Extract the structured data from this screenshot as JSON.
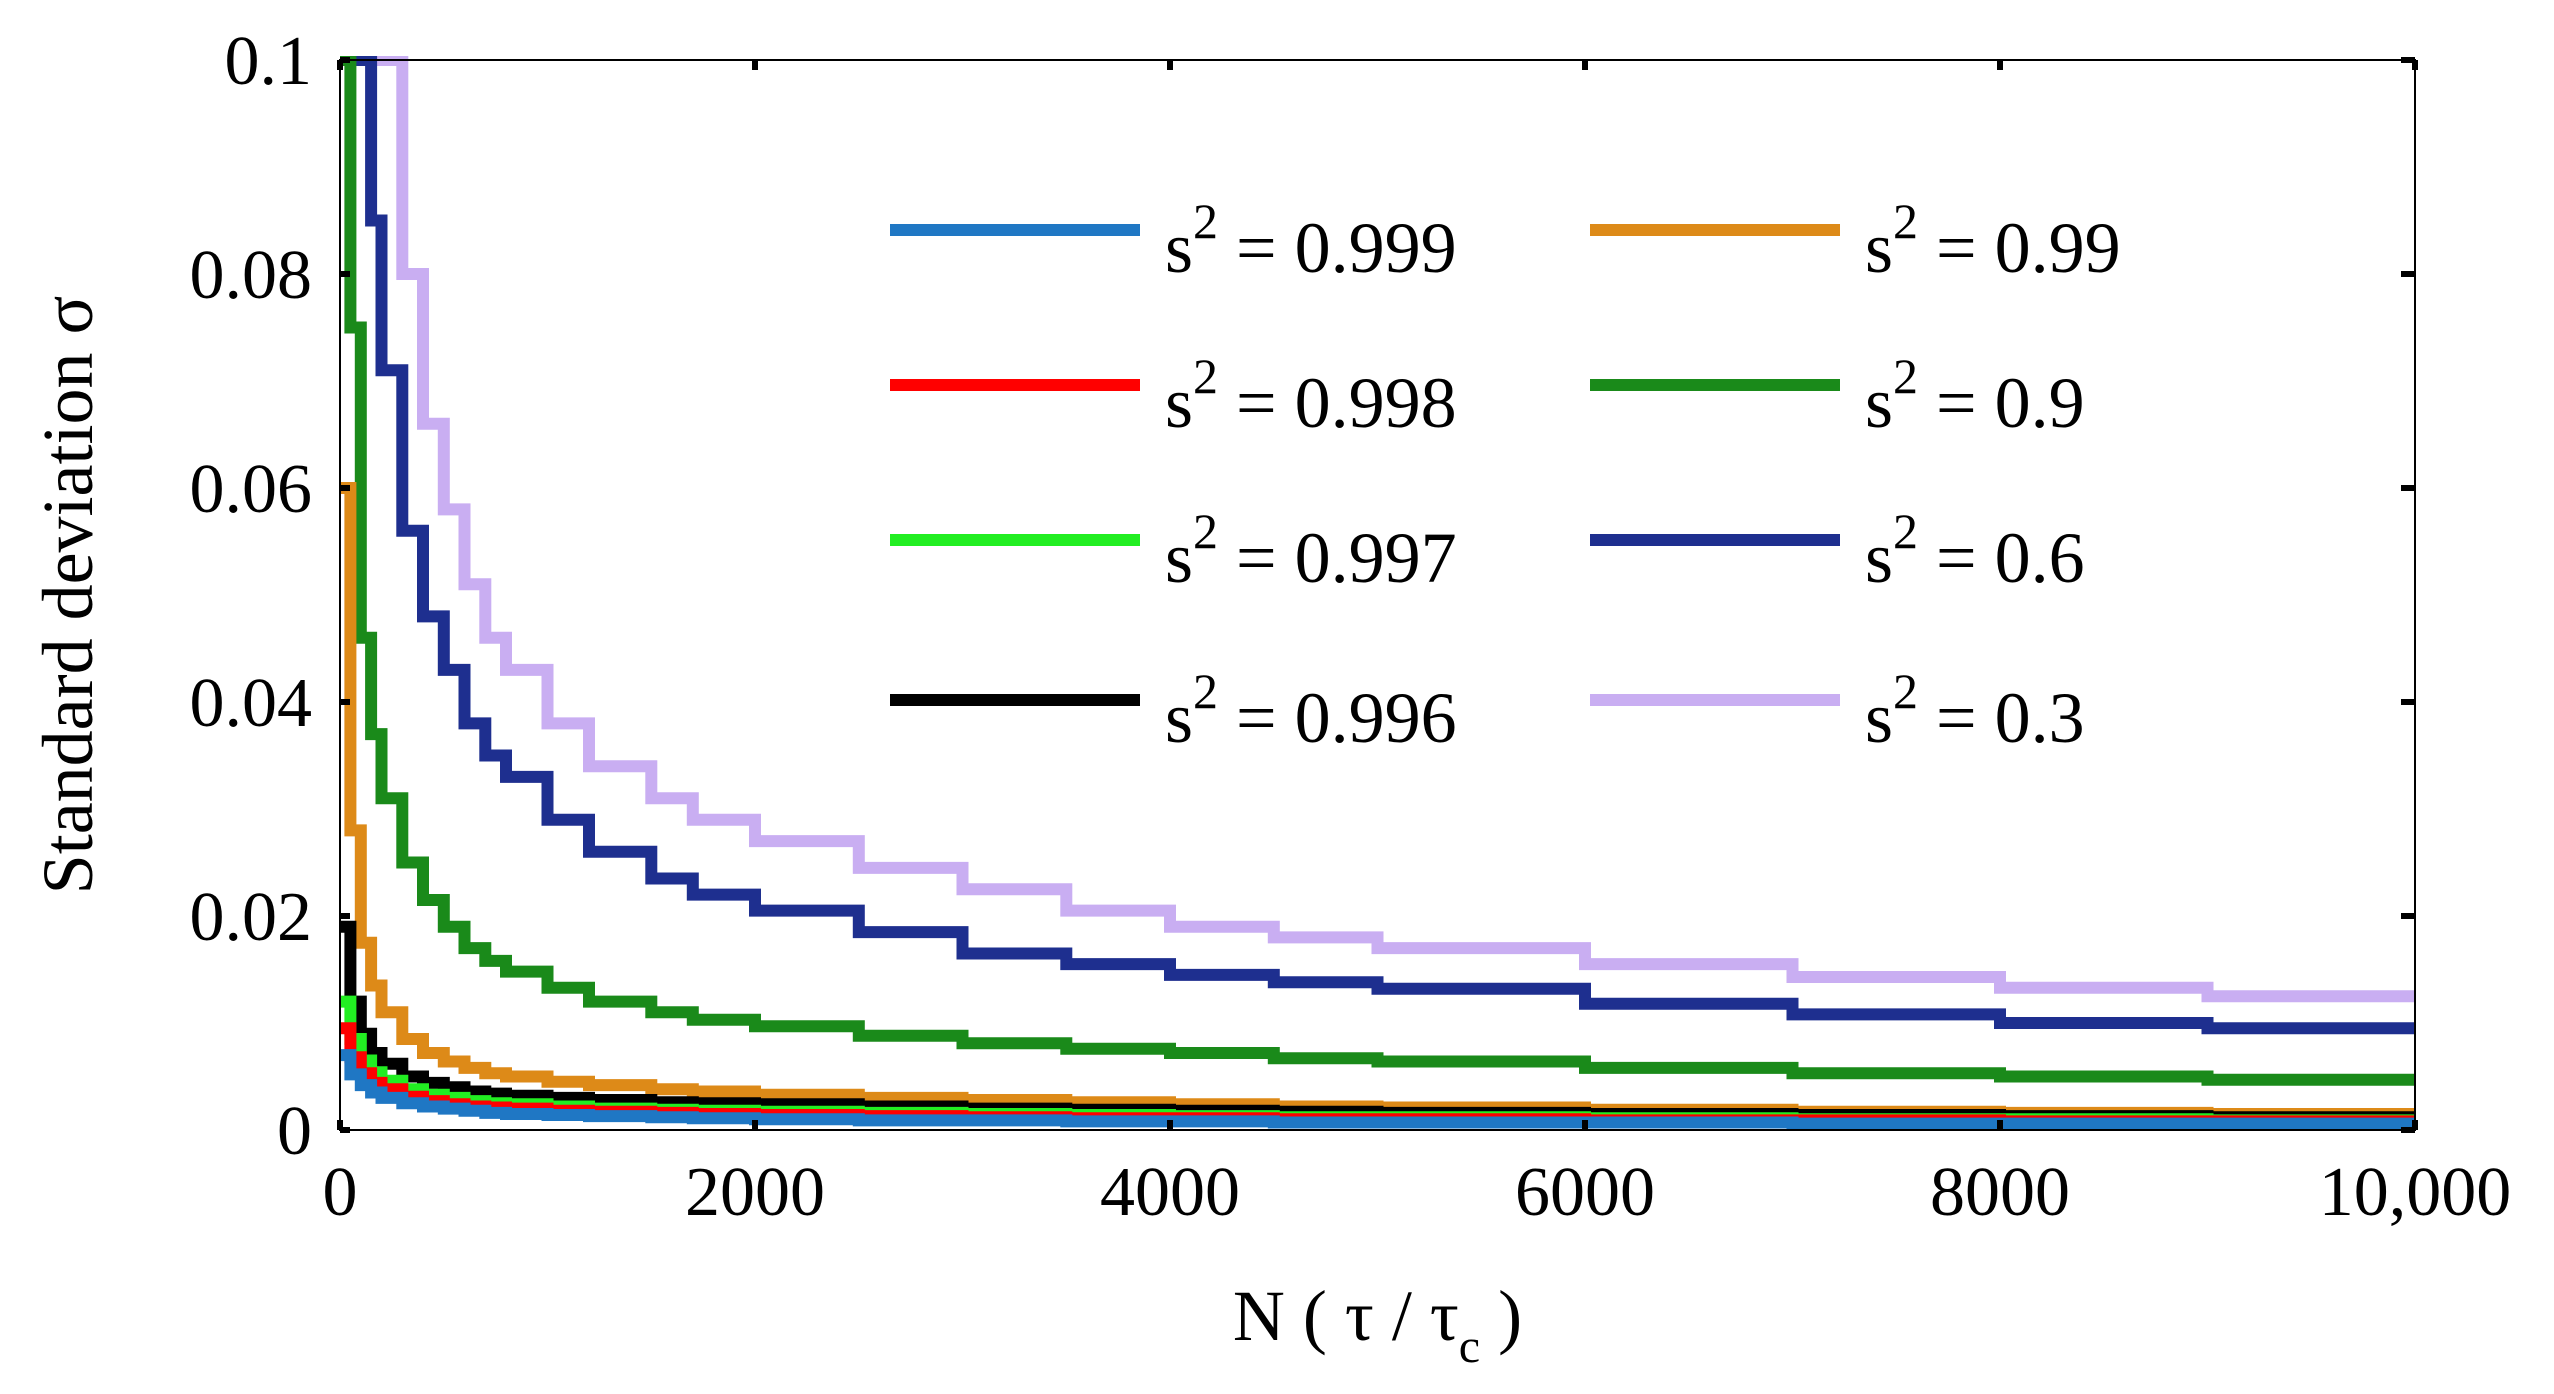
{
  "chart_data": {
    "type": "line",
    "title": "",
    "xlabel": "N ( τ / τc )",
    "ylabel": "Standard deviation σ",
    "xlabel_parts": {
      "prefix": "N ( τ / τ",
      "subscript": "c",
      "suffix": " )"
    },
    "xlim": [
      0,
      10000
    ],
    "ylim": [
      0,
      0.1
    ],
    "x_ticks": [
      0,
      2000,
      4000,
      6000,
      8000,
      10000
    ],
    "x_tick_labels": [
      "0",
      "2000",
      "4000",
      "6000",
      "8000",
      "10,000"
    ],
    "y_ticks": [
      0,
      0.02,
      0.04,
      0.06,
      0.08,
      0.1
    ],
    "y_tick_labels": [
      "0",
      "0.02",
      "0.04",
      "0.06",
      "0.08",
      "0.1"
    ],
    "grid": false,
    "legend": {
      "placement": "top-right",
      "columns": 2
    },
    "x": [
      10,
      50,
      100,
      150,
      200,
      300,
      400,
      500,
      600,
      700,
      800,
      1000,
      1200,
      1500,
      1700,
      2000,
      2500,
      3000,
      3500,
      4000,
      4500,
      5000,
      6000,
      7000,
      8000,
      9000,
      10000
    ],
    "series": [
      {
        "name": "s2_0999",
        "label_base": "s",
        "label_sup": "2",
        "label_value": " = 0.999",
        "color": "#1f77c4",
        "values": [
          0.007,
          0.0052,
          0.0042,
          0.0035,
          0.003,
          0.0025,
          0.0022,
          0.002,
          0.0018,
          0.0016,
          0.0015,
          0.0014,
          0.0013,
          0.0012,
          0.0011,
          0.001,
          0.0009,
          0.0009,
          0.0008,
          0.0008,
          0.0007,
          0.0007,
          0.0007,
          0.0006,
          0.0006,
          0.0006,
          0.0006
        ]
      },
      {
        "name": "s2_0998",
        "label_base": "s",
        "label_sup": "2",
        "label_value": " = 0.998",
        "color": "#ff0000",
        "values": [
          0.0095,
          0.0068,
          0.0053,
          0.0044,
          0.0038,
          0.0031,
          0.0027,
          0.0024,
          0.0022,
          0.0021,
          0.002,
          0.0018,
          0.0017,
          0.0016,
          0.0015,
          0.0014,
          0.0013,
          0.0012,
          0.0011,
          0.0011,
          0.001,
          0.001,
          0.0009,
          0.0009,
          0.0008,
          0.0008,
          0.0008
        ]
      },
      {
        "name": "s2_0997",
        "label_base": "s",
        "label_sup": "2",
        "label_value": " = 0.997",
        "color": "#22ee22",
        "values": [
          0.012,
          0.0085,
          0.0065,
          0.0054,
          0.0046,
          0.0038,
          0.0033,
          0.003,
          0.0027,
          0.0025,
          0.0024,
          0.0022,
          0.002,
          0.0019,
          0.0018,
          0.0017,
          0.0016,
          0.0015,
          0.0014,
          0.0013,
          0.0012,
          0.0012,
          0.0011,
          0.001,
          0.001,
          0.0009,
          0.0009
        ]
      },
      {
        "name": "s2_0996",
        "label_base": "s",
        "label_sup": "2",
        "label_value": " = 0.996",
        "color": "#000000",
        "values": [
          0.019,
          0.012,
          0.009,
          0.0072,
          0.0062,
          0.005,
          0.0044,
          0.004,
          0.0036,
          0.0034,
          0.0032,
          0.003,
          0.0028,
          0.0026,
          0.0025,
          0.0024,
          0.0022,
          0.002,
          0.0019,
          0.0018,
          0.0017,
          0.0016,
          0.0015,
          0.0014,
          0.0013,
          0.0012,
          0.0012
        ]
      },
      {
        "name": "s2_099",
        "label_base": "s",
        "label_sup": "2",
        "label_value": " = 0.99",
        "color": "#dd8a18",
        "values": [
          0.06,
          0.028,
          0.0175,
          0.0135,
          0.011,
          0.0085,
          0.0072,
          0.0064,
          0.0058,
          0.0053,
          0.005,
          0.0045,
          0.0042,
          0.0038,
          0.0036,
          0.0033,
          0.003,
          0.0028,
          0.0026,
          0.0024,
          0.0022,
          0.0021,
          0.0019,
          0.0017,
          0.0016,
          0.0015,
          0.0014
        ]
      },
      {
        "name": "s2_09",
        "label_base": "s",
        "label_sup": "2",
        "label_value": " = 0.9",
        "color": "#1a8a1a",
        "values": [
          0.1,
          0.075,
          0.046,
          0.037,
          0.031,
          0.025,
          0.0215,
          0.019,
          0.017,
          0.0158,
          0.0148,
          0.0133,
          0.012,
          0.011,
          0.0103,
          0.0097,
          0.0088,
          0.0081,
          0.0076,
          0.0072,
          0.0067,
          0.0064,
          0.0058,
          0.0053,
          0.005,
          0.0047,
          0.0045
        ]
      },
      {
        "name": "s2_06",
        "label_base": "s",
        "label_sup": "2",
        "label_value": " = 0.6",
        "color": "#1e2f8f",
        "values": [
          0.1,
          0.1,
          0.1,
          0.085,
          0.071,
          0.056,
          0.048,
          0.043,
          0.038,
          0.035,
          0.033,
          0.029,
          0.026,
          0.0235,
          0.022,
          0.0205,
          0.0185,
          0.0165,
          0.0155,
          0.0145,
          0.0138,
          0.0132,
          0.0118,
          0.0108,
          0.01,
          0.0095,
          0.009
        ]
      },
      {
        "name": "s2_03",
        "label_base": "s",
        "label_sup": "2",
        "label_value": " = 0.3",
        "color": "#c9aef2",
        "values": [
          0.1,
          0.1,
          0.1,
          0.1,
          0.1,
          0.08,
          0.066,
          0.058,
          0.051,
          0.046,
          0.043,
          0.038,
          0.034,
          0.031,
          0.029,
          0.027,
          0.0245,
          0.0225,
          0.0205,
          0.019,
          0.018,
          0.017,
          0.0155,
          0.0143,
          0.0133,
          0.0125,
          0.012
        ]
      }
    ]
  }
}
